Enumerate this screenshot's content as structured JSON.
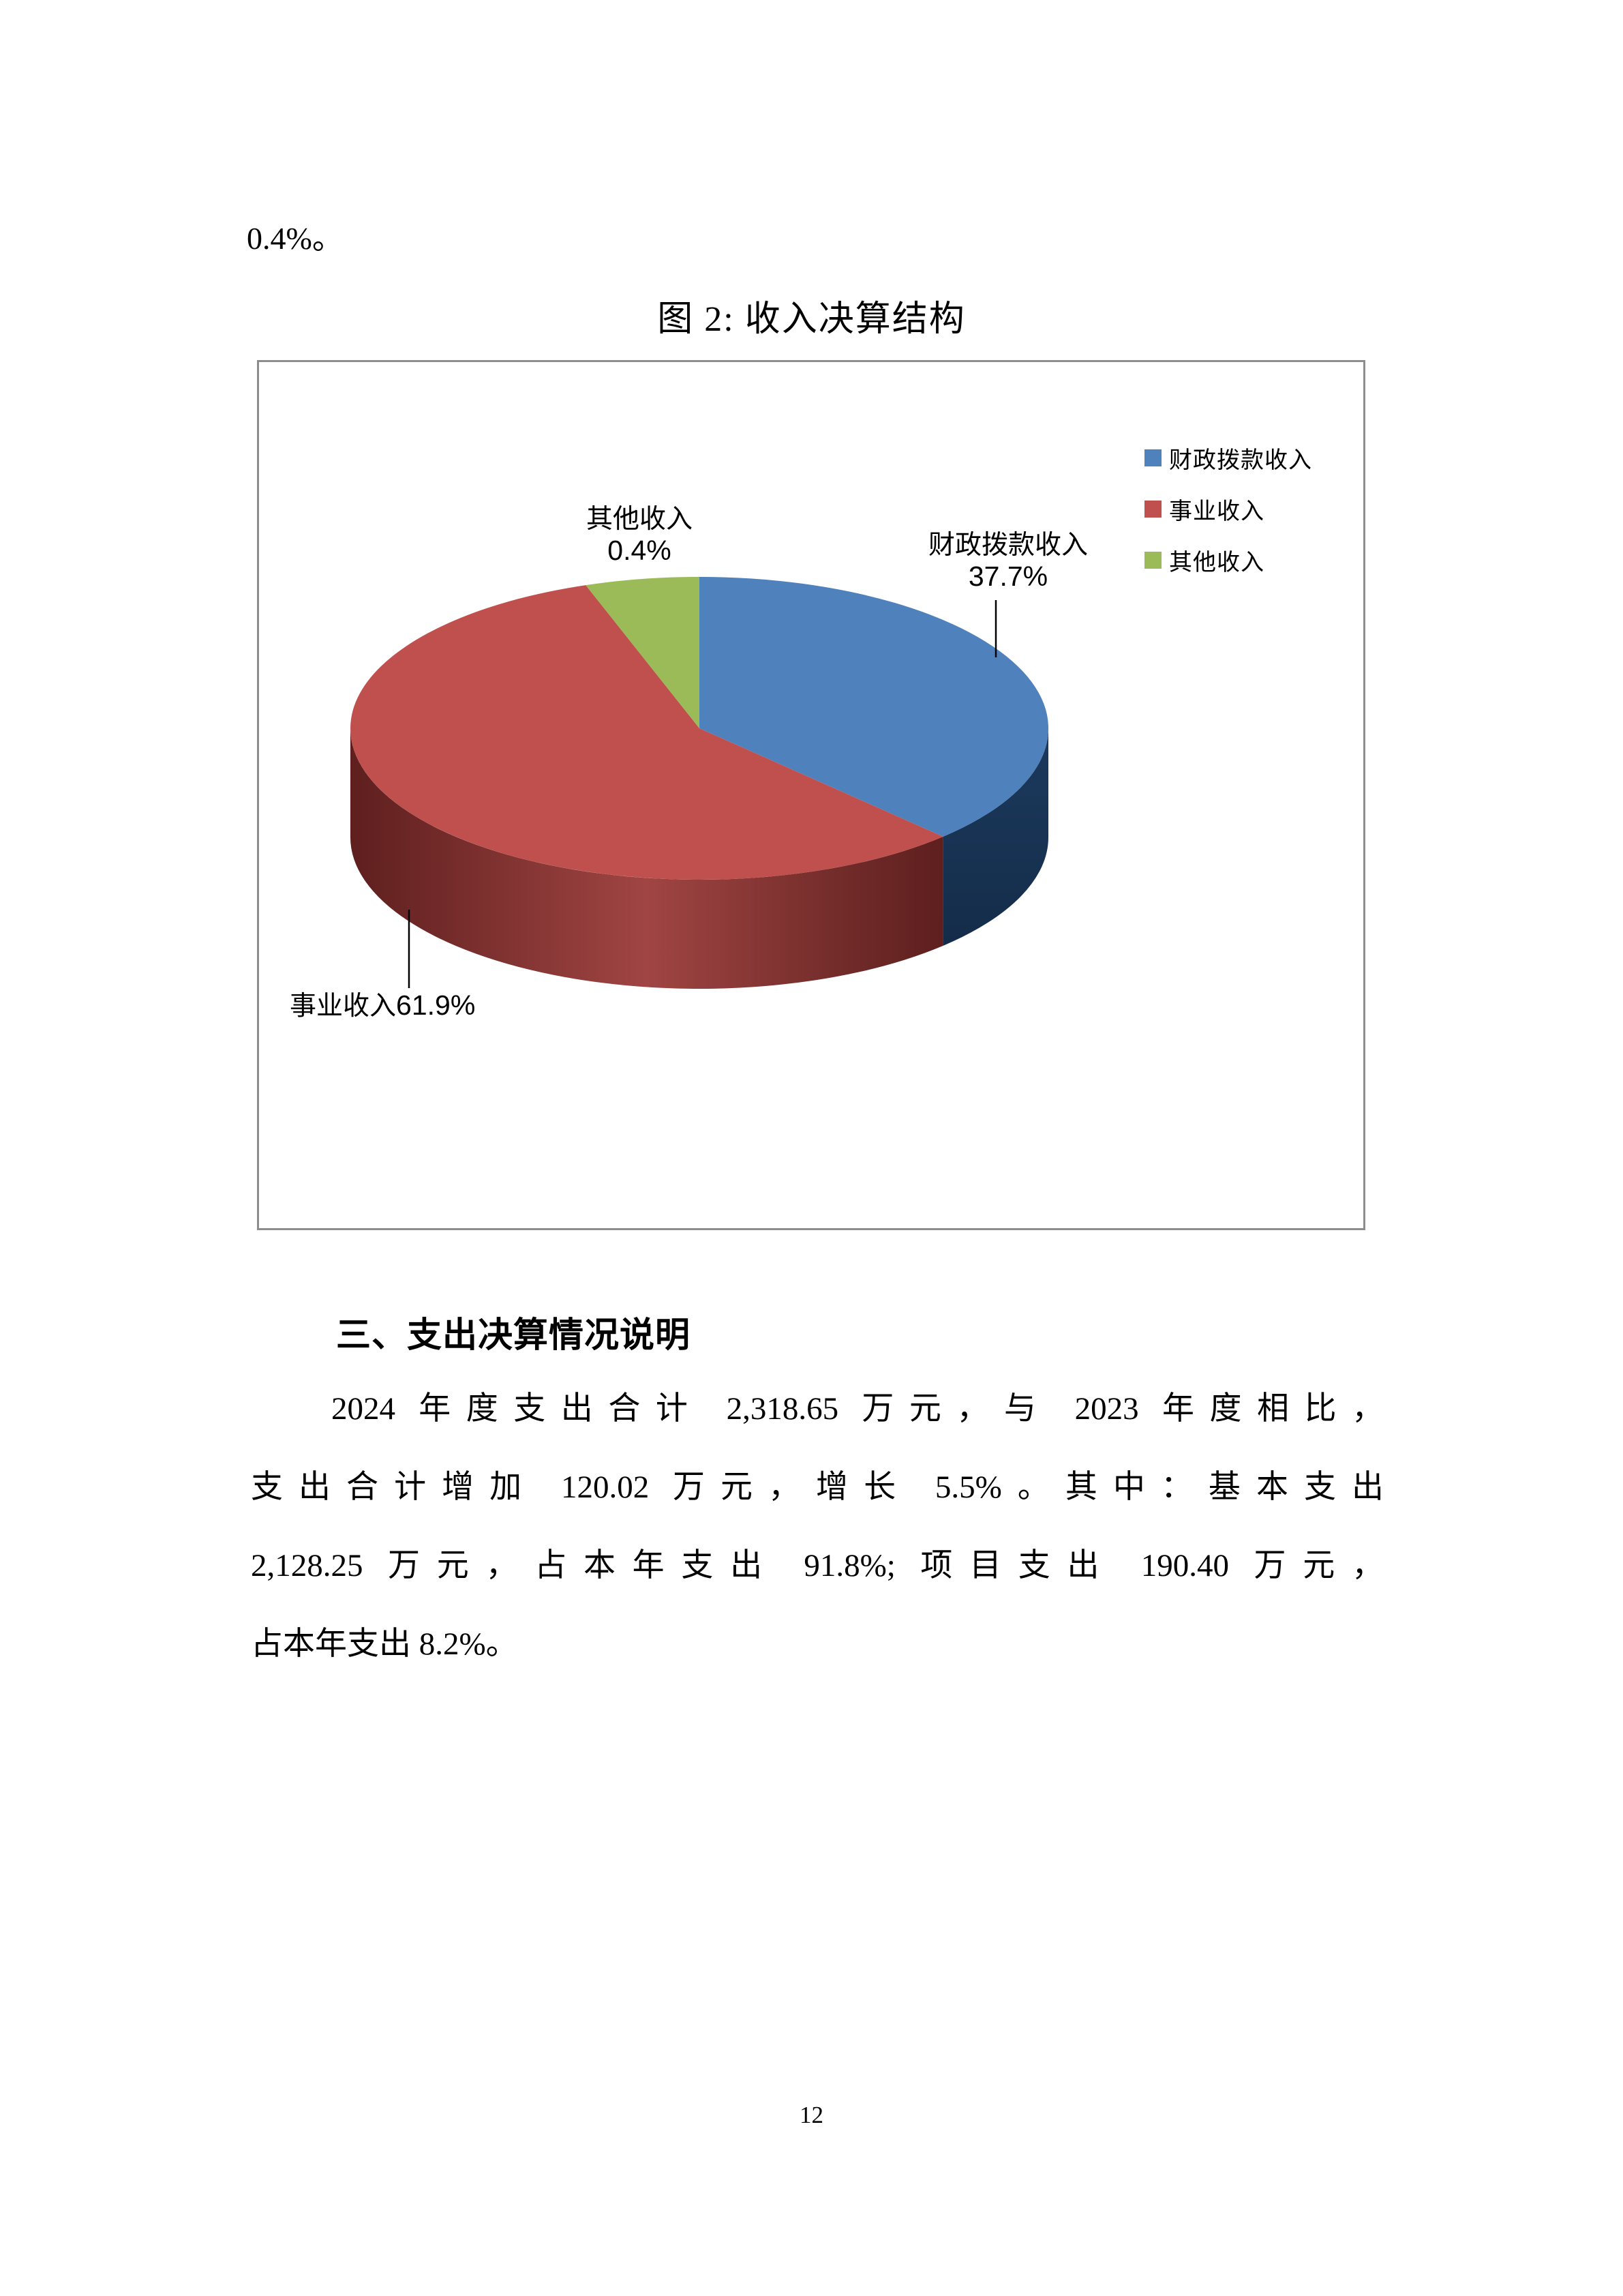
{
  "page": {
    "pre_text": "0.4%。",
    "figure_title": "图 2: 收入决算结构",
    "section_heading": "三、支出决算情况说明",
    "paragraph_lines": [
      "2024 年度支出合计 2,318.65 万元，与 2023 年度相比，",
      "支出合计增加 120.02 万元，增长 5.5%。其中：基本支出",
      "2,128.25 万元，占本年支出 91.8%; 项目支出 190.40 万元，",
      "占本年支出 8.2%。"
    ],
    "page_number": "12"
  },
  "chart": {
    "legend": [
      {
        "label": "财政拨款收入",
        "color": "#4F81BD"
      },
      {
        "label": "事业收入",
        "color": "#C0504D"
      },
      {
        "label": "其他收入",
        "color": "#9BBB59"
      }
    ],
    "labels": {
      "fiscal": {
        "name": "财政拨款收入",
        "pct": "37.7%"
      },
      "business": {
        "name": "事业收入",
        "pct": "61.9%"
      },
      "other": {
        "name": "其他收入",
        "pct": "0.4%"
      }
    }
  },
  "chart_data": {
    "type": "pie",
    "title": "图 2: 收入决算结构",
    "unit": "%",
    "effect": "3d",
    "legend_position": "right",
    "series": [
      {
        "name": "财政拨款收入",
        "value": 37.7
      },
      {
        "name": "事业收入",
        "value": 61.9
      },
      {
        "name": "其他收入",
        "value": 0.4
      }
    ],
    "start_angle_deg": 0,
    "visual_sweep_deg": [
      135.7,
      205.3,
      19.0
    ],
    "colors": {
      "fiscal": "#4F81BD",
      "business": "#C0504D",
      "other": "#9BBB59",
      "fiscal_side_dark": "#1C3A5E",
      "fiscal_side_darker": "#142C49",
      "business_side_dark": "#5E1F1E",
      "business_side_mid": "#A04543",
      "business_side_right": "#6F2A28"
    }
  }
}
